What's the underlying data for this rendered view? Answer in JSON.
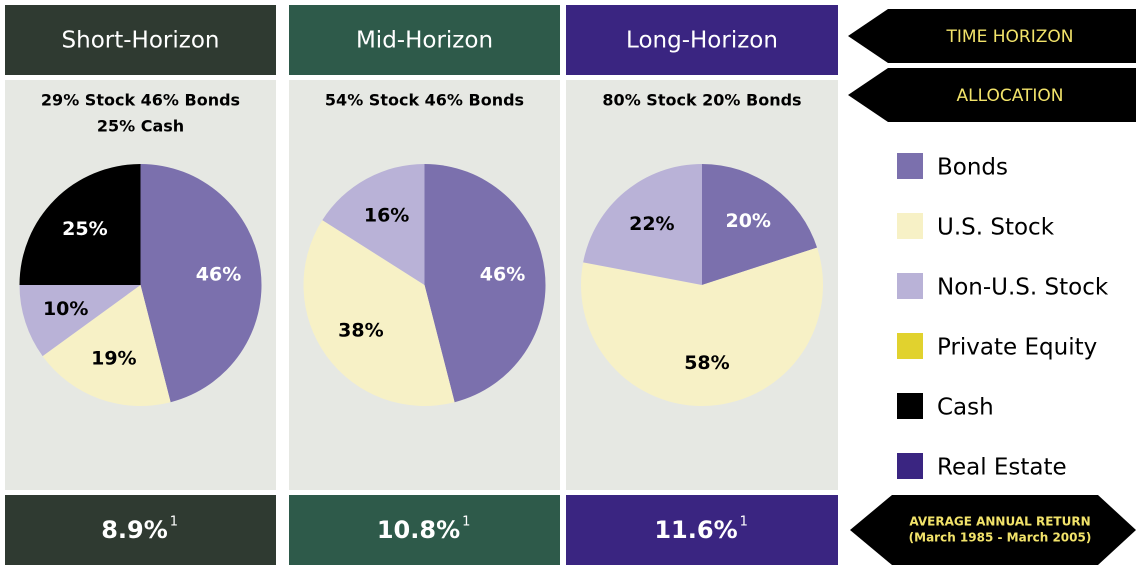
{
  "chart_data": [
    {
      "type": "pie",
      "title": "Short-Horizon",
      "header_color": "#2f3a31",
      "subtitle": [
        "29% Stock  46% Bonds",
        "25% Cash"
      ],
      "categories": [
        "Bonds",
        "U.S. Stock",
        "Non-U.S. Stock",
        "Cash"
      ],
      "values": [
        46,
        19,
        10,
        25
      ],
      "value_labels": [
        "46%",
        "19%",
        "10%",
        "25%"
      ],
      "colors": [
        "#7b70ad",
        "#f7f1c6",
        "#b9b2d7",
        "#000000"
      ],
      "return": "8.9%",
      "footnote": "1"
    },
    {
      "type": "pie",
      "title": "Mid-Horizon",
      "header_color": "#2e5a4a",
      "subtitle": [
        "54% Stock  46% Bonds"
      ],
      "categories": [
        "Bonds",
        "U.S. Stock",
        "Non-U.S. Stock"
      ],
      "values": [
        46,
        38,
        16
      ],
      "value_labels": [
        "46%",
        "38%",
        "16%"
      ],
      "colors": [
        "#7b70ad",
        "#f7f1c6",
        "#b9b2d7"
      ],
      "return": "10.8%",
      "footnote": "1"
    },
    {
      "type": "pie",
      "title": "Long-Horizon",
      "header_color": "#3a2581",
      "subtitle": [
        "80% Stock  20% Bonds"
      ],
      "categories": [
        "Bonds",
        "U.S. Stock",
        "Non-U.S. Stock"
      ],
      "values": [
        20,
        58,
        22
      ],
      "value_labels": [
        "20%",
        "58%",
        "22%"
      ],
      "colors": [
        "#7b70ad",
        "#f7f1c6",
        "#b9b2d7"
      ],
      "return": "11.6%",
      "footnote": "1"
    }
  ],
  "legend": [
    {
      "name": "Bonds",
      "color": "#7b70ad"
    },
    {
      "name": "U.S. Stock",
      "color": "#f7f1c6"
    },
    {
      "name": "Non-U.S. Stock",
      "color": "#b9b2d7"
    },
    {
      "name": "Private Equity",
      "color": "#e1d22e"
    },
    {
      "name": "Cash",
      "color": "#000000"
    },
    {
      "name": "Real Estate",
      "color": "#3a2581"
    }
  ],
  "arrows": {
    "time_horizon": "TIME HORIZON",
    "allocation": "ALLOCATION",
    "return": [
      "AVERAGE ANNUAL RETURN",
      "(March 1985 - March 2005)"
    ]
  }
}
